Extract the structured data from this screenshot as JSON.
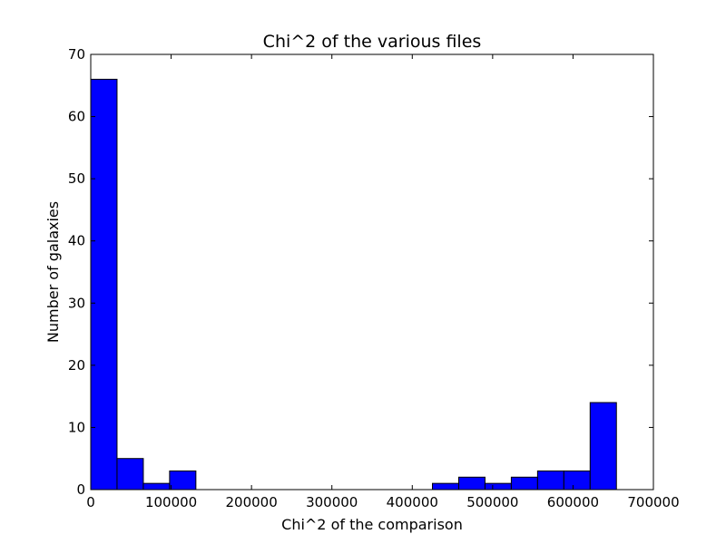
{
  "chart_data": {
    "type": "bar",
    "title": "Chi^2 of the various files",
    "xlabel": "Chi^2 of the comparison",
    "ylabel": "Number of galaxies",
    "xlim": [
      0,
      700000
    ],
    "ylim": [
      0,
      70
    ],
    "xticks": [
      0,
      100000,
      200000,
      300000,
      400000,
      500000,
      600000,
      700000
    ],
    "xtick_labels": [
      "0",
      "100000",
      "200000",
      "300000",
      "400000",
      "500000",
      "600000",
      "700000"
    ],
    "yticks": [
      0,
      10,
      20,
      30,
      40,
      50,
      60,
      70
    ],
    "ytick_labels": [
      "0",
      "10",
      "20",
      "30",
      "40",
      "50",
      "60",
      "70"
    ],
    "bin_width": 32700,
    "bins": [
      {
        "x0": 0,
        "x1": 32700,
        "count": 66
      },
      {
        "x0": 32700,
        "x1": 65400,
        "count": 5
      },
      {
        "x0": 65400,
        "x1": 98100,
        "count": 1
      },
      {
        "x0": 98100,
        "x1": 130800,
        "count": 3
      },
      {
        "x0": 130800,
        "x1": 163500,
        "count": 0
      },
      {
        "x0": 163500,
        "x1": 196200,
        "count": 0
      },
      {
        "x0": 196200,
        "x1": 228900,
        "count": 0
      },
      {
        "x0": 228900,
        "x1": 261600,
        "count": 0
      },
      {
        "x0": 261600,
        "x1": 294300,
        "count": 0
      },
      {
        "x0": 294300,
        "x1": 327000,
        "count": 0
      },
      {
        "x0": 327000,
        "x1": 359700,
        "count": 0
      },
      {
        "x0": 359700,
        "x1": 392400,
        "count": 0
      },
      {
        "x0": 392400,
        "x1": 425100,
        "count": 0
      },
      {
        "x0": 425100,
        "x1": 457800,
        "count": 1
      },
      {
        "x0": 457800,
        "x1": 490500,
        "count": 2
      },
      {
        "x0": 490500,
        "x1": 523200,
        "count": 1
      },
      {
        "x0": 523200,
        "x1": 555900,
        "count": 2
      },
      {
        "x0": 555900,
        "x1": 588600,
        "count": 3
      },
      {
        "x0": 588600,
        "x1": 621300,
        "count": 3
      },
      {
        "x0": 621300,
        "x1": 654000,
        "count": 14
      }
    ],
    "bar_color": "#0000ff",
    "edge_color": "#000000",
    "grid": false,
    "legend": "none"
  }
}
